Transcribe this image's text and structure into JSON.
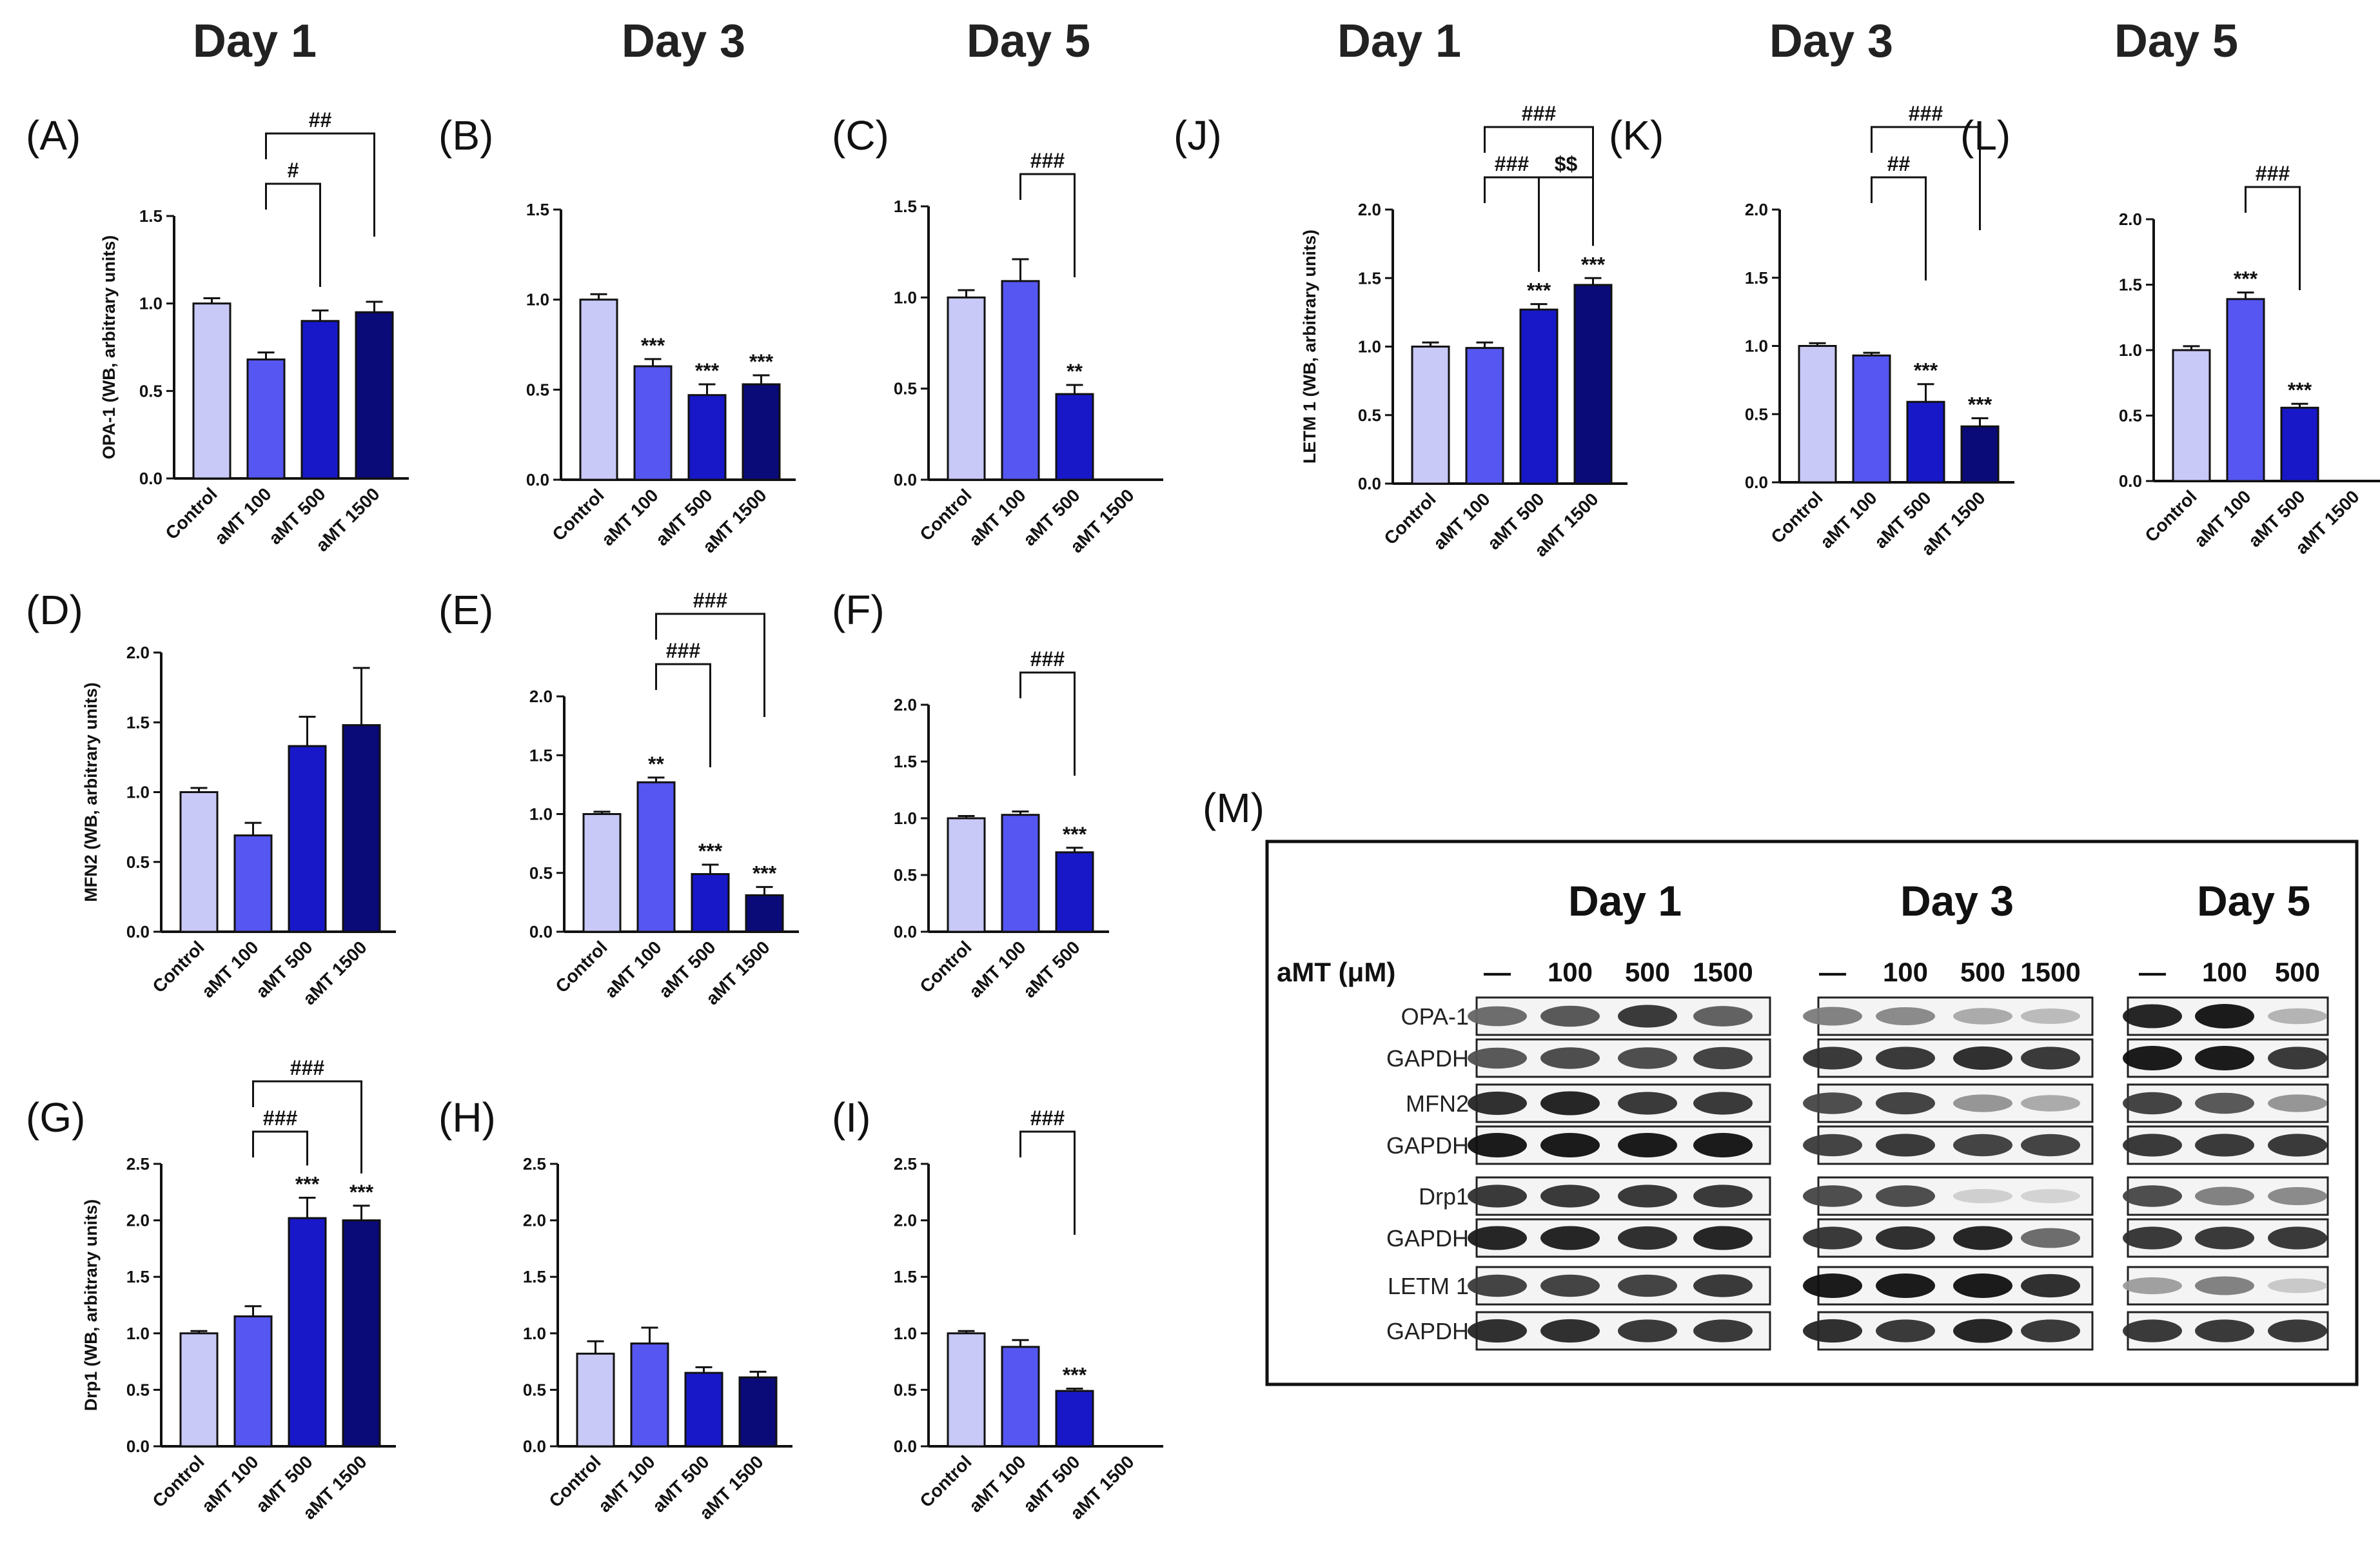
{
  "colors": {
    "Control": "#c9c9f8",
    "aMT 100": "#5656f2",
    "aMT 500": "#1818c8",
    "aMT 1500": "#0a0a78",
    "axis": "#111111",
    "band": "#1a1a1a"
  },
  "column_titles": [
    {
      "id": "d1a",
      "text": "Day 1"
    },
    {
      "id": "d3a",
      "text": "Day 3"
    },
    {
      "id": "d5a",
      "text": "Day 5"
    },
    {
      "id": "d1b",
      "text": "Day 1"
    },
    {
      "id": "d3b",
      "text": "Day 3"
    },
    {
      "id": "d5b",
      "text": "Day 5"
    }
  ],
  "chart_data": [
    {
      "id": "A",
      "type": "bar",
      "panel_label": "(A)",
      "ylabel": "OPA-1 (WB, arbitrary units)",
      "categories": [
        "Control",
        "aMT 100",
        "aMT 500",
        "aMT 1500"
      ],
      "values": [
        1.0,
        0.68,
        0.9,
        0.95
      ],
      "errors": [
        0.03,
        0.04,
        0.06,
        0.06
      ],
      "stars": [
        "",
        "",
        "",
        ""
      ],
      "ylim": [
        0,
        1.5
      ],
      "yticks": [
        "0.0",
        "0.5",
        "1.0",
        "1.5"
      ],
      "ystep": 0.5,
      "brackets": [
        {
          "from": 1,
          "to": 2,
          "label": "#",
          "level": 0
        },
        {
          "from": 1,
          "to": 3,
          "label": "##",
          "level": 1
        }
      ]
    },
    {
      "id": "B",
      "type": "bar",
      "panel_label": "(B)",
      "ylabel": "",
      "categories": [
        "Control",
        "aMT 100",
        "aMT 500",
        "aMT 1500"
      ],
      "values": [
        1.0,
        0.63,
        0.47,
        0.53
      ],
      "errors": [
        0.03,
        0.04,
        0.06,
        0.05
      ],
      "stars": [
        "",
        "***",
        "***",
        "***"
      ],
      "ylim": [
        0,
        1.5
      ],
      "yticks": [
        "0.0",
        "0.5",
        "1.0",
        "1.5"
      ],
      "ystep": 0.5,
      "brackets": []
    },
    {
      "id": "C",
      "type": "bar",
      "panel_label": "(C)",
      "ylabel": "",
      "categories": [
        "Control",
        "aMT 100",
        "aMT 500",
        "aMT 1500"
      ],
      "values": [
        1.0,
        1.09,
        0.47,
        null
      ],
      "errors": [
        0.04,
        0.12,
        0.05,
        0
      ],
      "stars": [
        "",
        "",
        "**",
        ""
      ],
      "ylim": [
        0,
        1.5
      ],
      "yticks": [
        "0.0",
        "0.5",
        "1.0",
        "1.5"
      ],
      "ystep": 0.5,
      "brackets": [
        {
          "from": 1,
          "to": 2,
          "label": "###",
          "level": 0
        }
      ]
    },
    {
      "id": "J",
      "type": "bar",
      "panel_label": "(J)",
      "ylabel": "LETM 1 (WB, arbitrary units)",
      "categories": [
        "Control",
        "aMT 100",
        "aMT 500",
        "aMT 1500"
      ],
      "values": [
        1.0,
        0.99,
        1.27,
        1.45
      ],
      "errors": [
        0.03,
        0.04,
        0.04,
        0.05
      ],
      "stars": [
        "",
        "",
        "***",
        "***"
      ],
      "ylim": [
        0,
        2.0
      ],
      "yticks": [
        "0.0",
        "0.5",
        "1.0",
        "1.5",
        "2.0"
      ],
      "ystep": 0.5,
      "brackets": [
        {
          "from": 1,
          "to": 2,
          "label": "###",
          "level": 0
        },
        {
          "from": 2,
          "to": 3,
          "label": "$$",
          "level": 0
        },
        {
          "from": 1,
          "to": 3,
          "label": "###",
          "level": 1
        }
      ]
    },
    {
      "id": "K",
      "type": "bar",
      "panel_label": "(K)",
      "ylabel": "",
      "categories": [
        "Control",
        "aMT 100",
        "aMT 500",
        "aMT 1500"
      ],
      "values": [
        1.0,
        0.93,
        0.59,
        0.41
      ],
      "errors": [
        0.02,
        0.02,
        0.13,
        0.06
      ],
      "stars": [
        "",
        "",
        "***",
        "***"
      ],
      "ylim": [
        0,
        2.0
      ],
      "yticks": [
        "0.0",
        "0.5",
        "1.0",
        "1.5",
        "2.0"
      ],
      "ystep": 0.5,
      "brackets": [
        {
          "from": 1,
          "to": 2,
          "label": "##",
          "level": 0
        },
        {
          "from": 1,
          "to": 3,
          "label": "###",
          "level": 1
        }
      ]
    },
    {
      "id": "L",
      "type": "bar",
      "panel_label": "(L)",
      "ylabel": "",
      "categories": [
        "Control",
        "aMT 100",
        "aMT 500",
        "aMT 1500"
      ],
      "values": [
        1.0,
        1.39,
        0.56,
        null
      ],
      "errors": [
        0.03,
        0.05,
        0.03,
        0
      ],
      "stars": [
        "",
        "***",
        "***",
        ""
      ],
      "ylim": [
        0,
        2.0
      ],
      "yticks": [
        "0.0",
        "0.5",
        "1.0",
        "1.5",
        "2.0"
      ],
      "ystep": 0.5,
      "brackets": [
        {
          "from": 1,
          "to": 2,
          "label": "###",
          "level": 0
        }
      ]
    },
    {
      "id": "D",
      "type": "bar",
      "panel_label": "(D)",
      "ylabel": "MFN2 (WB, arbitrary units)",
      "categories": [
        "Control",
        "aMT 100",
        "aMT 500",
        "aMT 1500"
      ],
      "values": [
        1.0,
        0.69,
        1.33,
        1.48
      ],
      "errors": [
        0.03,
        0.09,
        0.21,
        0.41
      ],
      "stars": [
        "",
        "",
        "",
        ""
      ],
      "ylim": [
        0,
        2.0
      ],
      "yticks": [
        "0.0",
        "0.5",
        "1.0",
        "1.5",
        "2.0"
      ],
      "ystep": 0.5,
      "brackets": []
    },
    {
      "id": "E",
      "type": "bar",
      "panel_label": "(E)",
      "ylabel": "",
      "categories": [
        "Control",
        "aMT 100",
        "aMT 500",
        "aMT 1500"
      ],
      "values": [
        1.0,
        1.27,
        0.49,
        0.31
      ],
      "errors": [
        0.02,
        0.04,
        0.08,
        0.07
      ],
      "stars": [
        "",
        "**",
        "***",
        "***"
      ],
      "ylim": [
        0,
        2.0
      ],
      "yticks": [
        "0.0",
        "0.5",
        "1.0",
        "1.5",
        "2.0"
      ],
      "ystep": 0.5,
      "brackets": [
        {
          "from": 1,
          "to": 2,
          "label": "###",
          "level": 0
        },
        {
          "from": 1,
          "to": 3,
          "label": "###",
          "level": 1
        }
      ]
    },
    {
      "id": "F",
      "type": "bar",
      "panel_label": "(F)",
      "ylabel": "",
      "categories": [
        "Control",
        "aMT 100",
        "aMT 500"
      ],
      "values": [
        1.0,
        1.03,
        0.7
      ],
      "errors": [
        0.02,
        0.03,
        0.04
      ],
      "stars": [
        "",
        "",
        "***"
      ],
      "ylim": [
        0,
        2.0
      ],
      "yticks": [
        "0.0",
        "0.5",
        "1.0",
        "1.5",
        "2.0"
      ],
      "ystep": 0.5,
      "brackets": [
        {
          "from": 1,
          "to": 2,
          "label": "###",
          "level": 0
        }
      ]
    },
    {
      "id": "G",
      "type": "bar",
      "panel_label": "(G)",
      "ylabel": "Drp1 (WB, arbitrary units)",
      "categories": [
        "Control",
        "aMT 100",
        "aMT 500",
        "aMT 1500"
      ],
      "values": [
        1.0,
        1.15,
        2.02,
        2.0
      ],
      "errors": [
        0.02,
        0.09,
        0.18,
        0.13
      ],
      "stars": [
        "",
        "",
        "***",
        "***"
      ],
      "ylim": [
        0,
        2.5
      ],
      "yticks": [
        "0.0",
        "0.5",
        "1.0",
        "1.5",
        "2.0",
        "2.5"
      ],
      "ystep": 0.5,
      "brackets": [
        {
          "from": 1,
          "to": 2,
          "label": "###",
          "level": 0
        },
        {
          "from": 1,
          "to": 3,
          "label": "###",
          "level": 1
        }
      ]
    },
    {
      "id": "H",
      "type": "bar",
      "panel_label": "(H)",
      "ylabel": "",
      "categories": [
        "Control",
        "aMT 100",
        "aMT 500",
        "aMT 1500"
      ],
      "values": [
        0.82,
        0.91,
        0.65,
        0.61
      ],
      "errors": [
        0.11,
        0.14,
        0.05,
        0.05
      ],
      "stars": [
        "",
        "",
        "",
        ""
      ],
      "ylim": [
        0,
        2.5
      ],
      "yticks": [
        "0.0",
        "0.5",
        "1.0",
        "1.5",
        "2.0",
        "2.5"
      ],
      "ystep": 0.5,
      "brackets": []
    },
    {
      "id": "I",
      "type": "bar",
      "panel_label": "(I)",
      "ylabel": "",
      "categories": [
        "Control",
        "aMT 100",
        "aMT 500",
        "aMT 1500"
      ],
      "values": [
        1.0,
        0.88,
        0.49,
        null
      ],
      "errors": [
        0.02,
        0.06,
        0.02,
        0
      ],
      "stars": [
        "",
        "",
        "***",
        ""
      ],
      "ylim": [
        0,
        2.5
      ],
      "yticks": [
        "0.0",
        "0.5",
        "1.0",
        "1.5",
        "2.0",
        "2.5"
      ],
      "ystep": 0.5,
      "brackets": [
        {
          "from": 1,
          "to": 2,
          "label": "###",
          "level": 0
        }
      ]
    }
  ],
  "western_blot": {
    "panel_label": "(M)",
    "concentration_label": "aMT (μM)",
    "days": [
      {
        "id": "day1",
        "title": "Day 1",
        "lanes": [
          "—",
          "100",
          "500",
          "1500"
        ]
      },
      {
        "id": "day3",
        "title": "Day 3",
        "lanes": [
          "—",
          "100",
          "500",
          "1500"
        ]
      },
      {
        "id": "day5",
        "title": "Day 5",
        "lanes": [
          "—",
          "100",
          "500"
        ]
      }
    ],
    "rows": [
      "OPA-1",
      "GAPDH",
      "MFN2",
      "GAPDH",
      "Drp1",
      "GAPDH",
      "LETM 1",
      "GAPDH"
    ],
    "band_intensity": {
      "day1": [
        [
          0.6,
          0.7,
          0.85,
          0.65
        ],
        [
          0.7,
          0.75,
          0.75,
          0.8
        ],
        [
          0.9,
          0.95,
          0.85,
          0.85
        ],
        [
          1,
          1,
          1,
          1
        ],
        [
          0.85,
          0.85,
          0.85,
          0.85
        ],
        [
          0.95,
          0.95,
          0.9,
          0.95
        ],
        [
          0.8,
          0.8,
          0.8,
          0.85
        ],
        [
          0.9,
          0.9,
          0.85,
          0.85
        ]
      ],
      "day3": [
        [
          0.5,
          0.45,
          0.3,
          0.22
        ],
        [
          0.85,
          0.85,
          0.9,
          0.85
        ],
        [
          0.75,
          0.8,
          0.4,
          0.3
        ],
        [
          0.8,
          0.85,
          0.8,
          0.8
        ],
        [
          0.75,
          0.75,
          0.12,
          0.1
        ],
        [
          0.85,
          0.9,
          0.95,
          0.6
        ],
        [
          1,
          1,
          1,
          0.9
        ],
        [
          0.9,
          0.85,
          0.95,
          0.85
        ]
      ],
      "day5": [
        [
          0.95,
          1.0,
          0.25
        ],
        [
          1,
          1,
          0.85
        ],
        [
          0.8,
          0.7,
          0.4
        ],
        [
          0.85,
          0.85,
          0.85
        ],
        [
          0.75,
          0.5,
          0.45
        ],
        [
          0.85,
          0.85,
          0.85
        ],
        [
          0.35,
          0.5,
          0.15
        ],
        [
          0.85,
          0.85,
          0.85
        ]
      ]
    }
  }
}
